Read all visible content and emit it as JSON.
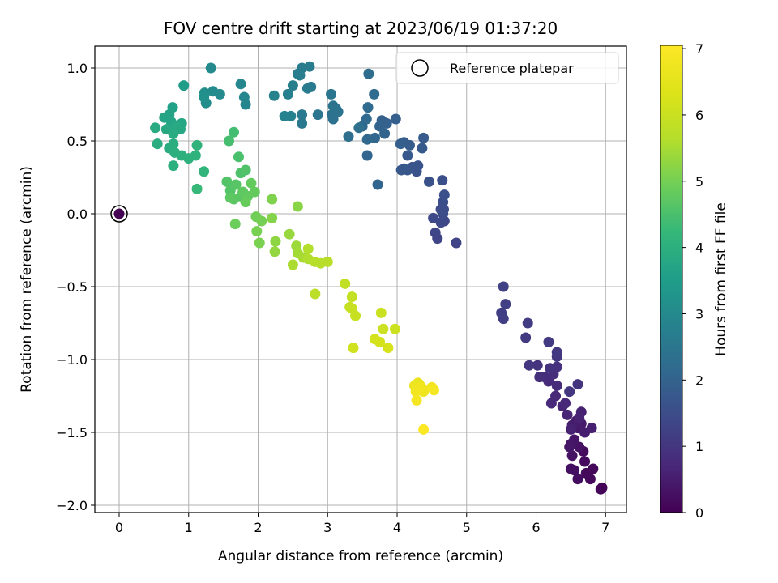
{
  "chart_data": {
    "type": "scatter",
    "title": "FOV centre drift starting at 2023/06/19 01:37:20",
    "xlabel": "Angular distance from reference (arcmin)",
    "ylabel": "Rotation from reference (arcmin)",
    "xlim": [
      -0.35,
      7.3
    ],
    "ylim": [
      -2.05,
      1.15
    ],
    "xticks": [
      0,
      1,
      2,
      3,
      4,
      5,
      6,
      7
    ],
    "xtick_labels": [
      "0",
      "1",
      "2",
      "3",
      "4",
      "5",
      "6",
      "7"
    ],
    "yticks": [
      1.0,
      0.5,
      0.0,
      -0.5,
      -1.0,
      -1.5,
      -2.0
    ],
    "ytick_labels": [
      "1.0",
      "0.5",
      "0.0",
      "−0.5",
      "−1.0",
      "−1.5",
      "−2.0"
    ],
    "grid": true,
    "legend": {
      "placement": "top-right",
      "entries": [
        "Reference platepar"
      ]
    },
    "colorbar": {
      "label": "Hours from first FF file",
      "range": [
        0,
        7.05
      ],
      "ticks": [
        0,
        1,
        2,
        3,
        4,
        5,
        6,
        7
      ],
      "tick_labels": [
        "0",
        "1",
        "2",
        "3",
        "4",
        "5",
        "6",
        "7"
      ],
      "colormap": "viridis"
    },
    "reference_point": {
      "x": 0.0,
      "y": 0.0,
      "hours": 0
    },
    "points": [
      {
        "x": 6.95,
        "y": -1.88,
        "h": 0.05
      },
      {
        "x": 6.93,
        "y": -1.89,
        "h": 0.08
      },
      {
        "x": 6.82,
        "y": -1.75,
        "h": 0.1
      },
      {
        "x": 6.78,
        "y": -1.82,
        "h": 0.12
      },
      {
        "x": 6.72,
        "y": -1.78,
        "h": 0.15
      },
      {
        "x": 6.7,
        "y": -1.7,
        "h": 0.17
      },
      {
        "x": 6.68,
        "y": -1.63,
        "h": 0.2
      },
      {
        "x": 6.6,
        "y": -1.82,
        "h": 0.22
      },
      {
        "x": 6.55,
        "y": -1.76,
        "h": 0.25
      },
      {
        "x": 6.5,
        "y": -1.75,
        "h": 0.27
      },
      {
        "x": 6.62,
        "y": -1.6,
        "h": 0.3
      },
      {
        "x": 6.52,
        "y": -1.66,
        "h": 0.32
      },
      {
        "x": 6.5,
        "y": -1.58,
        "h": 0.35
      },
      {
        "x": 6.55,
        "y": -1.55,
        "h": 0.37
      },
      {
        "x": 6.48,
        "y": -1.6,
        "h": 0.4
      },
      {
        "x": 6.6,
        "y": -1.47,
        "h": 0.42
      },
      {
        "x": 6.65,
        "y": -1.44,
        "h": 0.45
      },
      {
        "x": 6.58,
        "y": -1.42,
        "h": 0.47
      },
      {
        "x": 6.52,
        "y": -1.45,
        "h": 0.5
      },
      {
        "x": 6.7,
        "y": -1.5,
        "h": 0.52
      },
      {
        "x": 6.8,
        "y": -1.47,
        "h": 0.55
      },
      {
        "x": 6.65,
        "y": -1.36,
        "h": 0.57
      },
      {
        "x": 6.5,
        "y": -1.48,
        "h": 0.6
      },
      {
        "x": 6.62,
        "y": -1.4,
        "h": 0.62
      },
      {
        "x": 6.45,
        "y": -1.38,
        "h": 0.65
      },
      {
        "x": 6.38,
        "y": -1.32,
        "h": 0.67
      },
      {
        "x": 6.42,
        "y": -1.3,
        "h": 0.7
      },
      {
        "x": 6.28,
        "y": -1.25,
        "h": 0.72
      },
      {
        "x": 6.22,
        "y": -1.3,
        "h": 0.75
      },
      {
        "x": 6.18,
        "y": -1.15,
        "h": 0.77
      },
      {
        "x": 6.3,
        "y": -1.18,
        "h": 0.8
      },
      {
        "x": 6.12,
        "y": -1.12,
        "h": 0.82
      },
      {
        "x": 6.25,
        "y": -1.1,
        "h": 0.85
      },
      {
        "x": 6.05,
        "y": -1.12,
        "h": 0.87
      },
      {
        "x": 6.3,
        "y": -1.05,
        "h": 0.9
      },
      {
        "x": 6.2,
        "y": -1.06,
        "h": 0.92
      },
      {
        "x": 6.02,
        "y": -1.04,
        "h": 0.95
      },
      {
        "x": 6.6,
        "y": -1.17,
        "h": 0.97
      },
      {
        "x": 6.48,
        "y": -1.22,
        "h": 1.0
      },
      {
        "x": 5.9,
        "y": -1.04,
        "h": 1.02
      },
      {
        "x": 6.3,
        "y": -0.98,
        "h": 1.05
      },
      {
        "x": 6.3,
        "y": -0.95,
        "h": 1.07
      },
      {
        "x": 6.18,
        "y": -0.88,
        "h": 1.1
      },
      {
        "x": 5.85,
        "y": -0.85,
        "h": 1.12
      },
      {
        "x": 5.88,
        "y": -0.75,
        "h": 1.15
      },
      {
        "x": 5.53,
        "y": -0.72,
        "h": 1.17
      },
      {
        "x": 5.5,
        "y": -0.68,
        "h": 1.2
      },
      {
        "x": 5.56,
        "y": -0.62,
        "h": 1.22
      },
      {
        "x": 5.53,
        "y": -0.5,
        "h": 1.25
      },
      {
        "x": 4.85,
        "y": -0.2,
        "h": 1.3
      },
      {
        "x": 4.58,
        "y": -0.17,
        "h": 1.33
      },
      {
        "x": 4.55,
        "y": -0.13,
        "h": 1.35
      },
      {
        "x": 4.68,
        "y": -0.05,
        "h": 1.37
      },
      {
        "x": 4.63,
        "y": -0.06,
        "h": 1.4
      },
      {
        "x": 4.52,
        "y": -0.03,
        "h": 1.42
      },
      {
        "x": 4.66,
        "y": 0.0,
        "h": 1.45
      },
      {
        "x": 4.67,
        "y": 0.03,
        "h": 1.47
      },
      {
        "x": 4.63,
        "y": 0.03,
        "h": 1.5
      },
      {
        "x": 4.66,
        "y": 0.08,
        "h": 1.52
      },
      {
        "x": 4.68,
        "y": 0.13,
        "h": 1.55
      },
      {
        "x": 4.65,
        "y": 0.23,
        "h": 1.57
      },
      {
        "x": 4.46,
        "y": 0.22,
        "h": 1.6
      },
      {
        "x": 4.28,
        "y": 0.29,
        "h": 1.62
      },
      {
        "x": 4.22,
        "y": 0.32,
        "h": 1.65
      },
      {
        "x": 4.3,
        "y": 0.33,
        "h": 1.67
      },
      {
        "x": 4.15,
        "y": 0.3,
        "h": 1.7
      },
      {
        "x": 4.1,
        "y": 0.31,
        "h": 1.72
      },
      {
        "x": 4.06,
        "y": 0.3,
        "h": 1.75
      },
      {
        "x": 4.15,
        "y": 0.4,
        "h": 1.77
      },
      {
        "x": 4.36,
        "y": 0.45,
        "h": 1.8
      },
      {
        "x": 4.38,
        "y": 0.52,
        "h": 1.82
      },
      {
        "x": 4.18,
        "y": 0.47,
        "h": 1.85
      },
      {
        "x": 4.1,
        "y": 0.49,
        "h": 1.87
      },
      {
        "x": 4.05,
        "y": 0.48,
        "h": 1.9
      },
      {
        "x": 3.98,
        "y": 0.65,
        "h": 1.92
      },
      {
        "x": 3.85,
        "y": 0.62,
        "h": 1.95
      },
      {
        "x": 3.78,
        "y": 0.64,
        "h": 1.97
      },
      {
        "x": 3.75,
        "y": 0.6,
        "h": 2.0
      },
      {
        "x": 3.82,
        "y": 0.55,
        "h": 2.02
      },
      {
        "x": 3.72,
        "y": 0.2,
        "h": 2.05
      },
      {
        "x": 3.57,
        "y": 0.4,
        "h": 2.08
      },
      {
        "x": 3.68,
        "y": 0.52,
        "h": 2.1
      },
      {
        "x": 3.57,
        "y": 0.51,
        "h": 2.12
      },
      {
        "x": 3.5,
        "y": 0.6,
        "h": 2.15
      },
      {
        "x": 3.56,
        "y": 0.65,
        "h": 2.17
      },
      {
        "x": 3.58,
        "y": 0.73,
        "h": 2.2
      },
      {
        "x": 3.67,
        "y": 0.82,
        "h": 2.22
      },
      {
        "x": 3.59,
        "y": 0.96,
        "h": 2.25
      },
      {
        "x": 3.3,
        "y": 0.53,
        "h": 2.3
      },
      {
        "x": 3.45,
        "y": 0.59,
        "h": 2.33
      },
      {
        "x": 3.08,
        "y": 0.65,
        "h": 2.35
      },
      {
        "x": 3.12,
        "y": 0.72,
        "h": 2.37
      },
      {
        "x": 3.15,
        "y": 0.7,
        "h": 2.4
      },
      {
        "x": 3.06,
        "y": 0.68,
        "h": 2.42
      },
      {
        "x": 3.08,
        "y": 0.74,
        "h": 2.45
      },
      {
        "x": 3.05,
        "y": 0.82,
        "h": 2.47
      },
      {
        "x": 2.86,
        "y": 0.68,
        "h": 2.5
      },
      {
        "x": 2.63,
        "y": 0.62,
        "h": 2.55
      },
      {
        "x": 2.63,
        "y": 0.68,
        "h": 2.57
      },
      {
        "x": 2.76,
        "y": 0.87,
        "h": 2.6
      },
      {
        "x": 2.71,
        "y": 0.86,
        "h": 2.62
      },
      {
        "x": 2.74,
        "y": 1.01,
        "h": 2.65
      },
      {
        "x": 2.63,
        "y": 1.0,
        "h": 2.67
      },
      {
        "x": 2.6,
        "y": 0.95,
        "h": 2.7
      },
      {
        "x": 2.57,
        "y": 0.96,
        "h": 2.72
      },
      {
        "x": 2.5,
        "y": 0.88,
        "h": 2.75
      },
      {
        "x": 2.43,
        "y": 0.82,
        "h": 2.77
      },
      {
        "x": 2.47,
        "y": 0.67,
        "h": 2.8
      },
      {
        "x": 2.38,
        "y": 0.67,
        "h": 2.82
      },
      {
        "x": 2.23,
        "y": 0.81,
        "h": 2.85
      },
      {
        "x": 1.82,
        "y": 0.75,
        "h": 2.9
      },
      {
        "x": 1.8,
        "y": 0.8,
        "h": 2.93
      },
      {
        "x": 1.75,
        "y": 0.89,
        "h": 2.95
      },
      {
        "x": 1.32,
        "y": 1.0,
        "h": 3.0
      },
      {
        "x": 1.45,
        "y": 0.82,
        "h": 3.03
      },
      {
        "x": 1.35,
        "y": 0.84,
        "h": 3.05
      },
      {
        "x": 1.25,
        "y": 0.76,
        "h": 3.1
      },
      {
        "x": 1.23,
        "y": 0.83,
        "h": 3.15
      },
      {
        "x": 1.22,
        "y": 0.8,
        "h": 3.2
      },
      {
        "x": 0.93,
        "y": 0.88,
        "h": 3.5
      },
      {
        "x": 0.77,
        "y": 0.73,
        "h": 3.6
      },
      {
        "x": 0.72,
        "y": 0.68,
        "h": 3.65
      },
      {
        "x": 0.65,
        "y": 0.66,
        "h": 3.7
      },
      {
        "x": 0.75,
        "y": 0.63,
        "h": 3.72
      },
      {
        "x": 0.9,
        "y": 0.62,
        "h": 3.75
      },
      {
        "x": 0.88,
        "y": 0.58,
        "h": 3.78
      },
      {
        "x": 0.82,
        "y": 0.6,
        "h": 3.8
      },
      {
        "x": 0.68,
        "y": 0.58,
        "h": 3.82
      },
      {
        "x": 0.52,
        "y": 0.59,
        "h": 3.85
      },
      {
        "x": 0.78,
        "y": 0.55,
        "h": 3.88
      },
      {
        "x": 0.55,
        "y": 0.48,
        "h": 3.9
      },
      {
        "x": 0.72,
        "y": 0.45,
        "h": 3.92
      },
      {
        "x": 0.78,
        "y": 0.48,
        "h": 3.95
      },
      {
        "x": 0.8,
        "y": 0.42,
        "h": 3.98
      },
      {
        "x": 0.78,
        "y": 0.33,
        "h": 4.0
      },
      {
        "x": 0.9,
        "y": 0.4,
        "h": 4.02
      },
      {
        "x": 1.0,
        "y": 0.38,
        "h": 4.05
      },
      {
        "x": 1.1,
        "y": 0.4,
        "h": 4.08
      },
      {
        "x": 1.12,
        "y": 0.47,
        "h": 4.1
      },
      {
        "x": 1.22,
        "y": 0.29,
        "h": 4.15
      },
      {
        "x": 1.12,
        "y": 0.17,
        "h": 4.25
      },
      {
        "x": 1.65,
        "y": 0.56,
        "h": 4.4
      },
      {
        "x": 1.58,
        "y": 0.5,
        "h": 4.45
      },
      {
        "x": 1.72,
        "y": 0.39,
        "h": 4.5
      },
      {
        "x": 1.75,
        "y": 0.28,
        "h": 4.55
      },
      {
        "x": 1.82,
        "y": 0.3,
        "h": 4.58
      },
      {
        "x": 1.55,
        "y": 0.22,
        "h": 4.6
      },
      {
        "x": 1.6,
        "y": 0.16,
        "h": 4.62
      },
      {
        "x": 1.68,
        "y": 0.2,
        "h": 4.65
      },
      {
        "x": 1.75,
        "y": 0.12,
        "h": 4.68
      },
      {
        "x": 1.65,
        "y": 0.1,
        "h": 4.7
      },
      {
        "x": 1.6,
        "y": 0.11,
        "h": 4.72
      },
      {
        "x": 1.78,
        "y": 0.15,
        "h": 4.75
      },
      {
        "x": 1.85,
        "y": 0.12,
        "h": 4.78
      },
      {
        "x": 1.9,
        "y": 0.21,
        "h": 4.8
      },
      {
        "x": 1.95,
        "y": 0.15,
        "h": 4.82
      },
      {
        "x": 1.82,
        "y": 0.08,
        "h": 4.85
      },
      {
        "x": 1.67,
        "y": -0.07,
        "h": 4.9
      },
      {
        "x": 1.97,
        "y": -0.02,
        "h": 4.95
      },
      {
        "x": 2.05,
        "y": -0.05,
        "h": 5.0
      },
      {
        "x": 1.98,
        "y": -0.12,
        "h": 5.03
      },
      {
        "x": 2.02,
        "y": -0.2,
        "h": 5.05
      },
      {
        "x": 2.2,
        "y": 0.1,
        "h": 5.1
      },
      {
        "x": 2.2,
        "y": -0.03,
        "h": 5.15
      },
      {
        "x": 2.57,
        "y": 0.05,
        "h": 5.2
      },
      {
        "x": 2.25,
        "y": -0.19,
        "h": 5.25
      },
      {
        "x": 2.24,
        "y": -0.26,
        "h": 5.3
      },
      {
        "x": 2.45,
        "y": -0.14,
        "h": 5.35
      },
      {
        "x": 2.55,
        "y": -0.22,
        "h": 5.4
      },
      {
        "x": 2.57,
        "y": -0.27,
        "h": 5.45
      },
      {
        "x": 2.65,
        "y": -0.3,
        "h": 5.5
      },
      {
        "x": 2.5,
        "y": -0.35,
        "h": 5.55
      },
      {
        "x": 2.72,
        "y": -0.31,
        "h": 5.6
      },
      {
        "x": 2.72,
        "y": -0.24,
        "h": 5.62
      },
      {
        "x": 2.9,
        "y": -0.34,
        "h": 5.65
      },
      {
        "x": 2.82,
        "y": -0.33,
        "h": 5.67
      },
      {
        "x": 3.0,
        "y": -0.33,
        "h": 5.7
      },
      {
        "x": 2.82,
        "y": -0.55,
        "h": 5.75
      },
      {
        "x": 3.25,
        "y": -0.48,
        "h": 5.85
      },
      {
        "x": 3.35,
        "y": -0.57,
        "h": 5.9
      },
      {
        "x": 3.32,
        "y": -0.64,
        "h": 5.93
      },
      {
        "x": 3.35,
        "y": -0.65,
        "h": 5.95
      },
      {
        "x": 3.4,
        "y": -0.7,
        "h": 5.97
      },
      {
        "x": 3.77,
        "y": -0.68,
        "h": 6.0
      },
      {
        "x": 3.8,
        "y": -0.79,
        "h": 6.02
      },
      {
        "x": 3.97,
        "y": -0.79,
        "h": 6.05
      },
      {
        "x": 3.37,
        "y": -0.92,
        "h": 6.1
      },
      {
        "x": 3.68,
        "y": -0.86,
        "h": 6.15
      },
      {
        "x": 3.75,
        "y": -0.88,
        "h": 6.18
      },
      {
        "x": 3.87,
        "y": -0.92,
        "h": 6.2
      },
      {
        "x": 4.3,
        "y": -1.16,
        "h": 6.6
      },
      {
        "x": 4.32,
        "y": -1.17,
        "h": 6.65
      },
      {
        "x": 4.25,
        "y": -1.18,
        "h": 6.7
      },
      {
        "x": 4.3,
        "y": -1.2,
        "h": 6.72
      },
      {
        "x": 4.38,
        "y": -1.22,
        "h": 6.75
      },
      {
        "x": 4.35,
        "y": -1.19,
        "h": 6.78
      },
      {
        "x": 4.27,
        "y": -1.22,
        "h": 6.8
      },
      {
        "x": 4.5,
        "y": -1.19,
        "h": 6.82
      },
      {
        "x": 4.53,
        "y": -1.21,
        "h": 6.85
      },
      {
        "x": 4.28,
        "y": -1.28,
        "h": 6.88
      },
      {
        "x": 4.38,
        "y": -1.48,
        "h": 7.0
      }
    ]
  }
}
